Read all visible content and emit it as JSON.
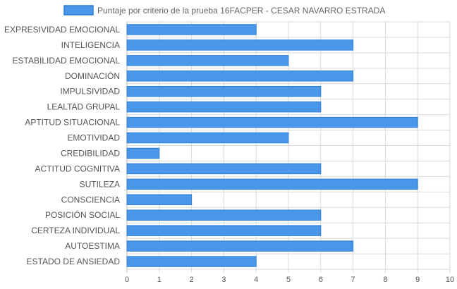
{
  "chart_data": {
    "type": "bar",
    "orientation": "horizontal",
    "legend_position": "top",
    "grid": true,
    "bar_color": "#4a97ea",
    "bar_border_color": "#2f7fd8",
    "grid_color": "#d9d9d9",
    "series": [
      {
        "name": "Puntaje por criterio de la prueba 16FACPER - CESAR NAVARRO ESTRADA"
      }
    ],
    "categories": [
      "EXPRESIVIDAD EMOCIONAL",
      "INTELIGENCIA",
      "ESTABILIDAD EMOCIONAL",
      "DOMINACIÓN",
      "IMPULSIVIDAD",
      "LEALTAD GRUPAL",
      "APTITUD SITUACIONAL",
      "EMOTIVIDAD",
      "CREDIBILIDAD",
      "ACTITUD COGNITIVA",
      "SUTILEZA",
      "CONSCIENCIA",
      "POSICIÓN SOCIAL",
      "CERTEZA INDIVIDUAL",
      "AUTOESTIMA",
      "ESTADO DE ANSIEDAD"
    ],
    "values": [
      4,
      7,
      5,
      7,
      6,
      6,
      9,
      5,
      1,
      6,
      9,
      2,
      6,
      6,
      7,
      4
    ],
    "xlim": [
      0,
      10
    ],
    "x_ticks": [
      "0",
      "1",
      "2",
      "3",
      "4",
      "5",
      "6",
      "7",
      "8",
      "9",
      "10"
    ]
  }
}
